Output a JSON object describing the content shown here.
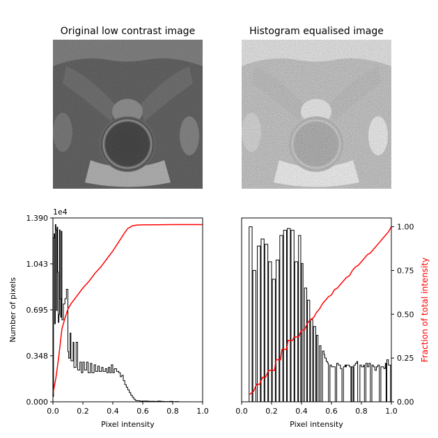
{
  "colors": {
    "hist": "#000000",
    "cdf": "#ff0000",
    "axis": "#000000",
    "background": "#ffffff"
  },
  "chart_data": [
    {
      "type": "image",
      "title": "Original low contrast image",
      "description_tag": "mri-pelvis-grayscale-low-contrast"
    },
    {
      "type": "image",
      "title": "Histogram equalised image",
      "description_tag": "mri-pelvis-grayscale-equalised"
    },
    {
      "type": "bar",
      "subtype": "step-histogram-with-cdf",
      "xlabel": "Pixel intensity",
      "ylabel": "Number of pixels",
      "offset_text": "1e4",
      "xlim": [
        0,
        1
      ],
      "ylim": [
        0,
        1.39
      ],
      "xticks": [
        "0.0",
        "0.2",
        "0.4",
        "0.6",
        "0.8",
        "1.0"
      ],
      "yticks": [
        "0.000",
        "0.348",
        "0.695",
        "1.043",
        "1.390"
      ],
      "ytick_values": [
        0,
        0.348,
        0.695,
        1.043,
        1.39
      ],
      "bin_width": 0.0039,
      "hist": [
        [
          0.0,
          0.04
        ],
        [
          0.004,
          1.24
        ],
        [
          0.008,
          1.27
        ],
        [
          0.012,
          0.59
        ],
        [
          0.016,
          1.34
        ],
        [
          0.02,
          1.3
        ],
        [
          0.024,
          0.69
        ],
        [
          0.028,
          1.32
        ],
        [
          0.032,
          0.98
        ],
        [
          0.036,
          0.6
        ],
        [
          0.04,
          0.66
        ],
        [
          0.044,
          1.3
        ],
        [
          0.048,
          0.78
        ],
        [
          0.052,
          0.64
        ],
        [
          0.056,
          1.29
        ],
        [
          0.06,
          0.62
        ],
        [
          0.07,
          0.74
        ],
        [
          0.08,
          0.78
        ],
        [
          0.09,
          0.85
        ],
        [
          0.1,
          0.38
        ],
        [
          0.105,
          0.33
        ],
        [
          0.115,
          0.52
        ],
        [
          0.12,
          0.31
        ],
        [
          0.135,
          0.45
        ],
        [
          0.14,
          0.26
        ],
        [
          0.155,
          0.45
        ],
        [
          0.165,
          0.24
        ],
        [
          0.18,
          0.3
        ],
        [
          0.19,
          0.22
        ],
        [
          0.2,
          0.3
        ],
        [
          0.21,
          0.24
        ],
        [
          0.225,
          0.3
        ],
        [
          0.235,
          0.22
        ],
        [
          0.25,
          0.29
        ],
        [
          0.26,
          0.22
        ],
        [
          0.275,
          0.28
        ],
        [
          0.285,
          0.23
        ],
        [
          0.3,
          0.27
        ],
        [
          0.31,
          0.23
        ],
        [
          0.325,
          0.26
        ],
        [
          0.335,
          0.23
        ],
        [
          0.35,
          0.25
        ],
        [
          0.36,
          0.22
        ],
        [
          0.37,
          0.26
        ],
        [
          0.38,
          0.22
        ],
        [
          0.39,
          0.28
        ],
        [
          0.4,
          0.22
        ],
        [
          0.41,
          0.25
        ],
        [
          0.425,
          0.23
        ],
        [
          0.44,
          0.22
        ],
        [
          0.45,
          0.19
        ],
        [
          0.46,
          0.2
        ],
        [
          0.47,
          0.16
        ],
        [
          0.48,
          0.13
        ],
        [
          0.49,
          0.11
        ],
        [
          0.5,
          0.09
        ],
        [
          0.51,
          0.07
        ],
        [
          0.52,
          0.05
        ],
        [
          0.53,
          0.035
        ],
        [
          0.54,
          0.02
        ],
        [
          0.55,
          0.01
        ],
        [
          0.56,
          0.008
        ],
        [
          0.58,
          0.005
        ],
        [
          0.6,
          0.006
        ],
        [
          0.62,
          0.005
        ],
        [
          0.64,
          0.004
        ],
        [
          0.66,
          0.004
        ],
        [
          0.68,
          0.003
        ],
        [
          0.7,
          0.005
        ],
        [
          0.72,
          0.003
        ],
        [
          0.74,
          0.002
        ],
        [
          0.76,
          0.002
        ],
        [
          0.78,
          0.003
        ],
        [
          0.8,
          0.001
        ],
        [
          0.82,
          0.002
        ],
        [
          0.84,
          0.0
        ],
        [
          0.88,
          0.0
        ],
        [
          0.92,
          0.0
        ],
        [
          0.96,
          0.0
        ],
        [
          0.996,
          0.0
        ]
      ],
      "cdf": [
        [
          0.0,
          0.06
        ],
        [
          0.02,
          0.18
        ],
        [
          0.04,
          0.35
        ],
        [
          0.06,
          0.55
        ],
        [
          0.08,
          0.63
        ],
        [
          0.1,
          0.7
        ],
        [
          0.12,
          0.74
        ],
        [
          0.16,
          0.8
        ],
        [
          0.2,
          0.86
        ],
        [
          0.24,
          0.91
        ],
        [
          0.28,
          0.97
        ],
        [
          0.32,
          1.02
        ],
        [
          0.36,
          1.08
        ],
        [
          0.4,
          1.14
        ],
        [
          0.44,
          1.21
        ],
        [
          0.48,
          1.28
        ],
        [
          0.5,
          1.31
        ],
        [
          0.53,
          1.33
        ],
        [
          0.56,
          1.336
        ],
        [
          0.6,
          1.338
        ],
        [
          0.7,
          1.339
        ],
        [
          0.8,
          1.34
        ],
        [
          0.9,
          1.34
        ],
        [
          1.0,
          1.34
        ]
      ]
    },
    {
      "type": "bar",
      "subtype": "step-histogram-with-cdf",
      "xlabel": "Pixel intensity",
      "ylabel": "",
      "y2label": "Fraction of total intensity",
      "xlim": [
        0,
        1
      ],
      "ylim": [
        0,
        1.05
      ],
      "xticks": [
        "0.0",
        "0.2",
        "0.4",
        "0.6",
        "0.8",
        "1.0"
      ],
      "y2ticks": [
        "0.00",
        "0.25",
        "0.50",
        "0.75",
        "1.00"
      ],
      "y2tick_values": [
        0,
        0.25,
        0.5,
        0.75,
        1.0
      ],
      "bin_width": 0.006,
      "hist": [
        [
          0.0,
          0.0
        ],
        [
          0.05,
          1.0
        ],
        [
          0.07,
          0.0
        ],
        [
          0.075,
          0.75
        ],
        [
          0.095,
          0.0
        ],
        [
          0.105,
          0.89
        ],
        [
          0.125,
          0.0
        ],
        [
          0.13,
          0.93
        ],
        [
          0.15,
          0.0
        ],
        [
          0.155,
          0.9
        ],
        [
          0.175,
          0.0
        ],
        [
          0.18,
          0.8
        ],
        [
          0.2,
          0.0
        ],
        [
          0.205,
          0.7
        ],
        [
          0.225,
          0.0
        ],
        [
          0.23,
          0.81
        ],
        [
          0.25,
          0.0
        ],
        [
          0.255,
          0.95
        ],
        [
          0.275,
          0.0
        ],
        [
          0.28,
          0.98
        ],
        [
          0.3,
          0.0
        ],
        [
          0.305,
          0.99
        ],
        [
          0.325,
          0.0
        ],
        [
          0.33,
          0.98
        ],
        [
          0.35,
          0.0
        ],
        [
          0.355,
          0.8
        ],
        [
          0.375,
          0.0
        ],
        [
          0.38,
          0.95
        ],
        [
          0.395,
          0.0
        ],
        [
          0.4,
          0.79
        ],
        [
          0.41,
          0.0
        ],
        [
          0.42,
          0.65
        ],
        [
          0.435,
          0.0
        ],
        [
          0.44,
          0.58
        ],
        [
          0.455,
          0.0
        ],
        [
          0.46,
          0.47
        ],
        [
          0.475,
          0.0
        ],
        [
          0.48,
          0.43
        ],
        [
          0.495,
          0.0
        ],
        [
          0.5,
          0.38
        ],
        [
          0.51,
          0.0
        ],
        [
          0.52,
          0.32
        ],
        [
          0.53,
          0.0
        ],
        [
          0.54,
          0.29
        ],
        [
          0.55,
          0.27
        ],
        [
          0.555,
          0.25
        ],
        [
          0.565,
          0.23
        ],
        [
          0.575,
          0.22
        ],
        [
          0.58,
          0.0
        ],
        [
          0.59,
          0.21
        ],
        [
          0.6,
          0.2
        ],
        [
          0.615,
          0.2
        ],
        [
          0.625,
          0.0
        ],
        [
          0.635,
          0.22
        ],
        [
          0.645,
          0.21
        ],
        [
          0.66,
          0.19
        ],
        [
          0.67,
          0.0
        ],
        [
          0.68,
          0.2
        ],
        [
          0.69,
          0.21
        ],
        [
          0.695,
          0.2
        ],
        [
          0.7,
          0.21
        ],
        [
          0.72,
          0.2
        ],
        [
          0.73,
          0.0
        ],
        [
          0.735,
          0.2
        ],
        [
          0.745,
          0.0
        ],
        [
          0.75,
          0.21
        ],
        [
          0.76,
          0.22
        ],
        [
          0.77,
          0.23
        ],
        [
          0.775,
          0.0
        ],
        [
          0.79,
          0.21
        ],
        [
          0.8,
          0.2
        ],
        [
          0.815,
          0.21
        ],
        [
          0.82,
          0.0
        ],
        [
          0.83,
          0.22
        ],
        [
          0.84,
          0.2
        ],
        [
          0.85,
          0.22
        ],
        [
          0.86,
          0.0
        ],
        [
          0.87,
          0.21
        ],
        [
          0.88,
          0.2
        ],
        [
          0.89,
          0.18
        ],
        [
          0.9,
          0.2
        ],
        [
          0.91,
          0.21
        ],
        [
          0.92,
          0.0
        ],
        [
          0.93,
          0.2
        ],
        [
          0.94,
          0.2
        ],
        [
          0.95,
          0.19
        ],
        [
          0.96,
          0.22
        ],
        [
          0.965,
          0.0
        ],
        [
          0.97,
          0.24
        ],
        [
          0.98,
          0.21
        ],
        [
          0.99,
          0.21
        ],
        [
          0.995,
          0.0
        ]
      ],
      "cdf": [
        [
          0.05,
          0.04
        ],
        [
          0.08,
          0.06
        ],
        [
          0.1,
          0.1
        ],
        [
          0.12,
          0.1
        ],
        [
          0.14,
          0.14
        ],
        [
          0.16,
          0.14
        ],
        [
          0.18,
          0.18
        ],
        [
          0.22,
          0.18
        ],
        [
          0.23,
          0.24
        ],
        [
          0.26,
          0.24
        ],
        [
          0.27,
          0.3
        ],
        [
          0.3,
          0.3
        ],
        [
          0.31,
          0.35
        ],
        [
          0.34,
          0.35
        ],
        [
          0.35,
          0.37
        ],
        [
          0.38,
          0.37
        ],
        [
          0.4,
          0.41
        ],
        [
          0.42,
          0.41
        ],
        [
          0.44,
          0.45
        ],
        [
          0.46,
          0.47
        ],
        [
          0.48,
          0.48
        ],
        [
          0.5,
          0.51
        ],
        [
          0.52,
          0.53
        ],
        [
          0.54,
          0.56
        ],
        [
          0.56,
          0.58
        ],
        [
          0.58,
          0.6
        ],
        [
          0.6,
          0.61
        ],
        [
          0.62,
          0.64
        ],
        [
          0.64,
          0.65
        ],
        [
          0.66,
          0.67
        ],
        [
          0.68,
          0.69
        ],
        [
          0.7,
          0.71
        ],
        [
          0.72,
          0.72
        ],
        [
          0.74,
          0.75
        ],
        [
          0.76,
          0.77
        ],
        [
          0.78,
          0.78
        ],
        [
          0.8,
          0.8
        ],
        [
          0.82,
          0.82
        ],
        [
          0.84,
          0.84
        ],
        [
          0.86,
          0.85
        ],
        [
          0.88,
          0.87
        ],
        [
          0.9,
          0.89
        ],
        [
          0.92,
          0.91
        ],
        [
          0.94,
          0.93
        ],
        [
          0.96,
          0.95
        ],
        [
          0.98,
          0.97
        ],
        [
          1.0,
          1.0
        ]
      ]
    }
  ]
}
